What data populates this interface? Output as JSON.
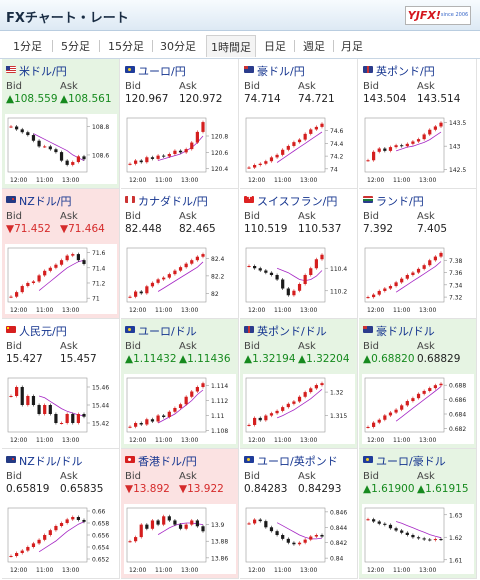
{
  "header": {
    "title": "FXチャート・レート",
    "logo": "YJFX!",
    "logo_sub": "since 2006"
  },
  "tabs": [
    "1分足",
    "5分足",
    "15分足",
    "30分足",
    "1時間足",
    "日足",
    "週足",
    "月足"
  ],
  "active_tab": 4,
  "labels": {
    "bid": "Bid",
    "ask": "Ask"
  },
  "x_ticks": [
    "12:00",
    "11:00",
    "13:00"
  ],
  "cards": [
    {
      "pair": "米ドル/円",
      "flag": "us",
      "state": "up",
      "bid": "▲108.559",
      "ask": "▲108.561",
      "ticks": [
        "108.8",
        "108.6"
      ],
      "closes": [
        108.8,
        108.78,
        108.76,
        108.74,
        108.7,
        108.66,
        108.66,
        108.64,
        108.62,
        108.56,
        108.53,
        108.55,
        108.59,
        108.57
      ],
      "ma": [
        108.75,
        108.73,
        108.71,
        108.69,
        108.67,
        108.65,
        108.63,
        108.6,
        108.58,
        108.56
      ],
      "range": [
        108.48,
        108.86
      ]
    },
    {
      "pair": "ユーロ/円",
      "flag": "eu",
      "state": "nc",
      "bid": "120.967",
      "ask": "120.972",
      "ticks": [
        "120.8",
        "120.6",
        "120.4"
      ],
      "closes": [
        120.46,
        120.5,
        120.48,
        120.54,
        120.52,
        120.56,
        120.55,
        120.58,
        120.62,
        120.6,
        120.64,
        120.72,
        120.85,
        120.97
      ],
      "ma": [
        120.5,
        120.52,
        120.54,
        120.56,
        120.58,
        120.62,
        120.66,
        120.72,
        120.8
      ],
      "range": [
        120.36,
        121.02
      ]
    },
    {
      "pair": "豪ドル/円",
      "flag": "au",
      "state": "nc",
      "bid": "74.714",
      "ask": "74.721",
      "ticks": [
        "74.6",
        "74.4",
        "74.2",
        "74"
      ],
      "closes": [
        74.02,
        74.06,
        74.08,
        74.12,
        74.18,
        74.22,
        74.3,
        74.36,
        74.42,
        74.46,
        74.55,
        74.62,
        74.66,
        74.71
      ],
      "ma": [
        74.1,
        74.16,
        74.22,
        74.28,
        74.34,
        74.4,
        74.46,
        74.52,
        74.58
      ],
      "range": [
        73.95,
        74.8
      ]
    },
    {
      "pair": "英ポンド/円",
      "flag": "gb",
      "state": "nc",
      "bid": "143.504",
      "ask": "143.514",
      "ticks": [
        "143.5",
        "143",
        "142.5"
      ],
      "closes": [
        142.7,
        142.88,
        142.95,
        142.9,
        142.98,
        143.02,
        143.0,
        143.05,
        143.1,
        143.15,
        143.25,
        143.35,
        143.42,
        143.5
      ],
      "ma": [
        142.9,
        142.94,
        142.98,
        143.0,
        143.04,
        143.08,
        143.14,
        143.22,
        143.3
      ],
      "range": [
        142.45,
        143.6
      ]
    },
    {
      "pair": "NZドル/円",
      "flag": "nz",
      "state": "dn",
      "bid": "▼71.452",
      "ask": "▼71.464",
      "ticks": [
        "71.6",
        "71.4",
        "71.2",
        "71"
      ],
      "closes": [
        71.02,
        71.08,
        71.16,
        71.2,
        71.22,
        71.3,
        71.36,
        71.4,
        71.44,
        71.5,
        71.56,
        71.58,
        71.5,
        71.45
      ],
      "ma": [
        71.1,
        71.16,
        71.22,
        71.28,
        71.34,
        71.4,
        71.44,
        71.48,
        71.5
      ],
      "range": [
        70.95,
        71.66
      ]
    },
    {
      "pair": "カナダドル/円",
      "flag": "ca",
      "state": "nc",
      "bid": "82.448",
      "ask": "82.465",
      "ticks": [
        "82.4",
        "82.2",
        "82"
      ],
      "closes": [
        81.96,
        82.02,
        82.0,
        82.08,
        82.12,
        82.16,
        82.18,
        82.22,
        82.26,
        82.3,
        82.34,
        82.38,
        82.42,
        82.45
      ],
      "ma": [
        82.02,
        82.06,
        82.1,
        82.14,
        82.18,
        82.22,
        82.26,
        82.3,
        82.36
      ],
      "range": [
        81.9,
        82.52
      ]
    },
    {
      "pair": "スイスフラン/円",
      "flag": "ch",
      "state": "nc",
      "bid": "110.519",
      "ask": "110.537",
      "ticks": [
        "110.4",
        "110.2"
      ],
      "closes": [
        110.42,
        110.4,
        110.38,
        110.36,
        110.34,
        110.3,
        110.22,
        110.16,
        110.2,
        110.26,
        110.34,
        110.4,
        110.48,
        110.52
      ],
      "ma": [
        110.4,
        110.38,
        110.36,
        110.33,
        110.3,
        110.29,
        110.3,
        110.33,
        110.38
      ],
      "range": [
        110.1,
        110.58
      ]
    },
    {
      "pair": "ランド/円",
      "flag": "za",
      "state": "nc",
      "bid": "7.392",
      "ask": "7.405",
      "ticks": [
        "7.38",
        "7.36",
        "7.34",
        "7.32"
      ],
      "closes": [
        7.32,
        7.324,
        7.33,
        7.334,
        7.338,
        7.344,
        7.35,
        7.356,
        7.36,
        7.366,
        7.372,
        7.38,
        7.386,
        7.392
      ],
      "ma": [
        7.328,
        7.334,
        7.34,
        7.346,
        7.352,
        7.358,
        7.364,
        7.37,
        7.378
      ],
      "range": [
        7.312,
        7.4
      ]
    },
    {
      "pair": "人民元/円",
      "flag": "cn",
      "state": "nc",
      "bid": "15.427",
      "ask": "15.457",
      "ticks": [
        "15.46",
        "15.44",
        "15.42"
      ],
      "closes": [
        15.45,
        15.46,
        15.44,
        15.45,
        15.44,
        15.43,
        15.44,
        15.43,
        15.42,
        15.42,
        15.43,
        15.42,
        15.43,
        15.427
      ],
      "ma": [
        15.45,
        15.448,
        15.444,
        15.44,
        15.436,
        15.433,
        15.431,
        15.429,
        15.428
      ],
      "range": [
        15.41,
        15.47
      ]
    },
    {
      "pair": "ユーロ/ドル",
      "flag": "eu",
      "state": "up",
      "bid": "▲1.11432",
      "ask": "▲1.11436",
      "ticks": [
        "1.114",
        "1.112",
        "1.11",
        "1.108"
      ],
      "closes": [
        1.1085,
        1.109,
        1.1088,
        1.1095,
        1.1092,
        1.11,
        1.1098,
        1.1105,
        1.111,
        1.1115,
        1.1125,
        1.1132,
        1.1138,
        1.1143
      ],
      "ma": [
        1.109,
        1.1094,
        1.1098,
        1.1102,
        1.1108,
        1.1114,
        1.112,
        1.1128,
        1.1134
      ],
      "range": [
        1.1078,
        1.115
      ]
    },
    {
      "pair": "英ポンド/ドル",
      "flag": "gb",
      "state": "up",
      "bid": "▲1.32194",
      "ask": "▲1.32204",
      "ticks": [
        "1.32",
        "1.315"
      ],
      "closes": [
        1.313,
        1.3145,
        1.314,
        1.315,
        1.3155,
        1.316,
        1.3168,
        1.3175,
        1.318,
        1.319,
        1.32,
        1.3208,
        1.3215,
        1.3219
      ],
      "ma": [
        1.3145,
        1.315,
        1.3156,
        1.3162,
        1.317,
        1.3178,
        1.3186,
        1.3196,
        1.3206
      ],
      "range": [
        1.3115,
        1.323
      ]
    },
    {
      "pair": "豪ドル/ドル",
      "flag": "au",
      "state": "up",
      "bid": "▲0.68820",
      "ask": "0.68829",
      "ticks": [
        "0.688",
        "0.686",
        "0.684",
        "0.682"
      ],
      "closes": [
        0.6822,
        0.6828,
        0.6832,
        0.6838,
        0.6842,
        0.6846,
        0.6852,
        0.6858,
        0.6862,
        0.6868,
        0.6872,
        0.6876,
        0.688,
        0.6882
      ],
      "ma": [
        0.683,
        0.6836,
        0.6842,
        0.6848,
        0.6854,
        0.686,
        0.6866,
        0.6872,
        0.6878
      ],
      "range": [
        0.6815,
        0.689
      ]
    },
    {
      "pair": "NZドル/ドル",
      "flag": "nz",
      "state": "nc",
      "bid": "0.65819",
      "ask": "0.65835",
      "ticks": [
        "0.66",
        "0.658",
        "0.656",
        "0.654",
        "0.652"
      ],
      "closes": [
        0.6525,
        0.653,
        0.6534,
        0.654,
        0.6546,
        0.6552,
        0.656,
        0.6568,
        0.6575,
        0.658,
        0.6586,
        0.659,
        0.6585,
        0.6582
      ],
      "ma": [
        0.6532,
        0.6538,
        0.6544,
        0.655,
        0.6558,
        0.6566,
        0.6572,
        0.6578,
        0.6582
      ],
      "range": [
        0.6515,
        0.6605
      ]
    },
    {
      "pair": "香港ドル/円",
      "flag": "hk",
      "state": "dn",
      "bid": "▼13.892",
      "ask": "▼13.922",
      "ticks": [
        "13.9",
        "13.88",
        "13.86"
      ],
      "closes": [
        13.88,
        13.885,
        13.9,
        13.895,
        13.905,
        13.9,
        13.91,
        13.905,
        13.9,
        13.895,
        13.9,
        13.905,
        13.898,
        13.892
      ],
      "ma": [
        13.888,
        13.892,
        13.896,
        13.899,
        13.901,
        13.902,
        13.902,
        13.901,
        13.9
      ],
      "range": [
        13.855,
        13.92
      ]
    },
    {
      "pair": "ユーロ/英ポンド",
      "flag": "eu",
      "state": "nc",
      "bid": "0.84283",
      "ask": "0.84293",
      "ticks": [
        "0.846",
        "0.844",
        "0.842",
        "0.84"
      ],
      "closes": [
        0.8445,
        0.845,
        0.8448,
        0.844,
        0.8435,
        0.843,
        0.8425,
        0.842,
        0.8418,
        0.842,
        0.8424,
        0.8428,
        0.843,
        0.8428
      ],
      "ma": [
        0.8446,
        0.8442,
        0.8438,
        0.8434,
        0.843,
        0.8427,
        0.8425,
        0.8425,
        0.8426
      ],
      "range": [
        0.8395,
        0.8465
      ]
    },
    {
      "pair": "ユーロ/豪ドル",
      "flag": "eu",
      "state": "up",
      "bid": "▲1.61900",
      "ask": "▲1.61915",
      "ticks": [
        "1.63",
        "1.62",
        "1.61"
      ],
      "closes": [
        1.628,
        1.627,
        1.626,
        1.6255,
        1.624,
        1.623,
        1.622,
        1.621,
        1.62,
        1.6195,
        1.619,
        1.6188,
        1.6192,
        1.619
      ],
      "ma": [
        1.627,
        1.6262,
        1.6252,
        1.6242,
        1.6232,
        1.6222,
        1.6212,
        1.6204,
        1.6198
      ],
      "range": [
        1.609,
        1.633
      ]
    }
  ]
}
